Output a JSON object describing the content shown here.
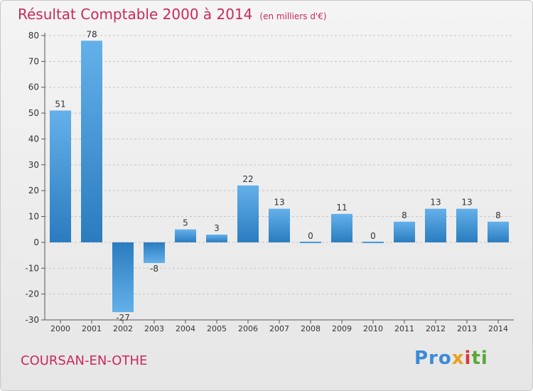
{
  "colors": {
    "accent": "#c82a5a",
    "bar_top": "#64b0ea",
    "bar_bottom": "#2a7cbf"
  },
  "header": {
    "title": "Résultat Comptable 2000 à 2014",
    "subtitle": "(en milliers d'€)"
  },
  "footer": {
    "commune": "COURSAN-EN-OTHE",
    "logo": {
      "p1": "Pro",
      "p2": "x",
      "p3": "i",
      "p4": "ti"
    }
  },
  "chart_data": {
    "type": "bar",
    "title": "Résultat Comptable 2000 à 2014",
    "subtitle": "(en milliers d'€)",
    "xlabel": "",
    "ylabel": "",
    "categories": [
      "2000",
      "2001",
      "2002",
      "2003",
      "2004",
      "2005",
      "2006",
      "2007",
      "2008",
      "2009",
      "2010",
      "2011",
      "2012",
      "2013",
      "2014"
    ],
    "values": [
      51,
      78,
      -27,
      -8,
      5,
      3,
      22,
      13,
      0,
      11,
      0,
      8,
      13,
      13,
      8
    ],
    "ylim": [
      -30,
      80
    ],
    "yticks": [
      -30,
      -20,
      -10,
      0,
      10,
      20,
      30,
      40,
      50,
      60,
      70,
      80
    ],
    "grid": true,
    "legend": "none"
  }
}
